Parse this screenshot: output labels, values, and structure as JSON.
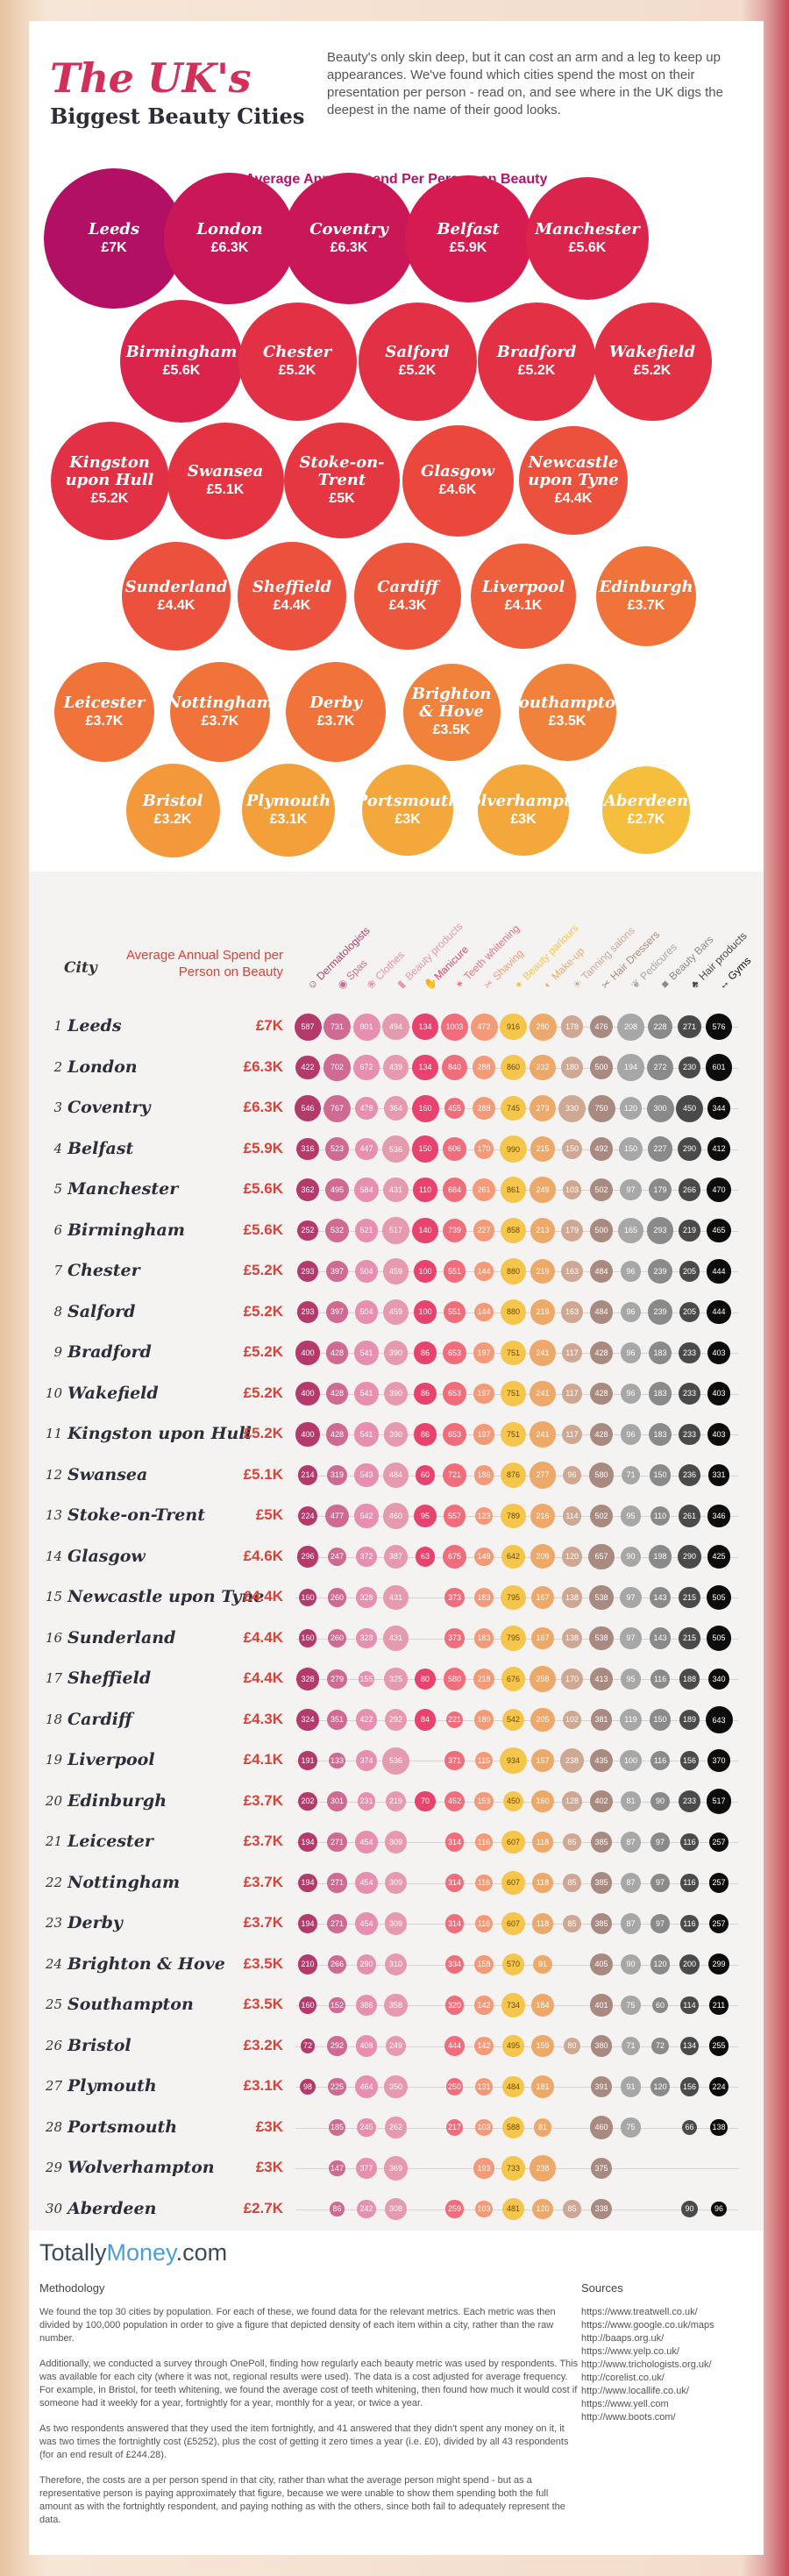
{
  "header": {
    "title": "The UK's",
    "subtitle": "Biggest Beauty Cities",
    "intro": "Beauty's only skin deep, but it can cost an arm and a leg to keep up appearances. We've found which cities spend the most on their presentation per person - read on, and see where in the UK digs the deepest in the name of their good looks."
  },
  "chart_data": [
    {
      "type": "bubble",
      "title": "Average Annual Spend Per Person on Beauty",
      "categories": [
        "Leeds",
        "London",
        "Coventry",
        "Belfast",
        "Manchester",
        "Birmingham",
        "Chester",
        "Salford",
        "Bradford",
        "Wakefield",
        "Kingston upon Hull",
        "Swansea",
        "Stoke-on-Trent",
        "Glasgow",
        "Newcastle upon Tyne",
        "Sunderland",
        "Sheffield",
        "Cardiff",
        "Liverpool",
        "Edinburgh",
        "Leicester",
        "Nottingham",
        "Derby",
        "Brighton & Hove",
        "Southampton",
        "Bristol",
        "Plymouth",
        "Portsmouth",
        "Wolverhampton",
        "Aberdeen"
      ],
      "labels": [
        "Leeds",
        "London",
        "Coventry",
        "Belfast",
        "Manchester",
        "Birmingham",
        "Chester",
        "Salford",
        "Bradford",
        "Wakefield",
        "Kingston upon Hull",
        "Swansea",
        "Stoke-on-Trent",
        "Glasgow",
        "Newcastle upon Tyne",
        "Sunderland",
        "Sheffield",
        "Cardiff",
        "Liverpool",
        "Edinburgh",
        "Leicester",
        "Nottingham",
        "Derby",
        "Brighton & Hove",
        "Southampton",
        "Bristol",
        "Plymouth",
        "Portsmouth",
        "Wolverhampton",
        "Aberdeen"
      ],
      "value_labels": [
        "£7K",
        "£6.3K",
        "£6.3K",
        "£5.9K",
        "£5.6K",
        "£5.6K",
        "£5.2K",
        "£5.2K",
        "£5.2K",
        "£5.2K",
        "£5.2K",
        "£5.1K",
        "£5K",
        "£4.6K",
        "£4.4K",
        "£4.4K",
        "£4.4K",
        "£4.3K",
        "£4.1K",
        "£3.7K",
        "£3.7K",
        "£3.7K",
        "£3.7K",
        "£3.5K",
        "£3.5K",
        "£3.2K",
        "£3.1K",
        "£3K",
        "£3K",
        "£2.7K"
      ],
      "values": [
        7.0,
        6.3,
        6.3,
        5.9,
        5.6,
        5.6,
        5.2,
        5.2,
        5.2,
        5.2,
        5.2,
        5.1,
        5.0,
        4.6,
        4.4,
        4.4,
        4.4,
        4.3,
        4.1,
        3.7,
        3.7,
        3.7,
        3.7,
        3.5,
        3.5,
        3.2,
        3.1,
        3.0,
        3.0,
        2.7
      ]
    },
    {
      "type": "table",
      "title": "",
      "city_header": "City",
      "spend_header": "Average Annual Spend per Person on Beauty",
      "ranks": [
        1,
        2,
        3,
        4,
        5,
        6,
        7,
        8,
        9,
        10,
        11,
        12,
        13,
        14,
        15,
        16,
        17,
        18,
        19,
        20,
        21,
        22,
        23,
        24,
        25,
        26,
        27,
        28,
        29,
        30
      ],
      "columns": [
        "Dermatologists",
        "Spas",
        "Clothes",
        "Beauty products",
        "Manicure",
        "Teeth whitening",
        "Shaving",
        "Beauty parlours",
        "Make-up",
        "Tanning salons",
        "Hair Dressers",
        "Pedicures",
        "Beauty Bars",
        "Hair products",
        "Gyms"
      ],
      "column_colors": [
        "#b53a6c",
        "#cf6b92",
        "#e78fae",
        "#e59aae",
        "#e8426e",
        "#f06d7c",
        "#f49a78",
        "#f6c64c",
        "#eda96a",
        "#cfa894",
        "#a88a80",
        "#a7a7a7",
        "#8a8a8a",
        "#4a4a4a",
        "#0c0c0c"
      ],
      "cities": [
        "Leeds",
        "London",
        "Coventry",
        "Belfast",
        "Manchester",
        "Birmingham",
        "Chester",
        "Salford",
        "Bradford",
        "Wakefield",
        "Kingston upon Hull",
        "Swansea",
        "Stoke-on-Trent",
        "Glasgow",
        "Newcastle upon Tyne",
        "Sunderland",
        "Sheffield",
        "Cardiff",
        "Liverpool",
        "Edinburgh",
        "Leicester",
        "Nottingham",
        "Derby",
        "Brighton & Hove",
        "Southampton",
        "Bristol",
        "Plymouth",
        "Portsmouth",
        "Wolverhampton",
        "Aberdeen"
      ],
      "spend": [
        "£7K",
        "£6.3K",
        "£6.3K",
        "£5.9K",
        "£5.6K",
        "£5.6K",
        "£5.2K",
        "£5.2K",
        "£5.2K",
        "£5.2K",
        "£5.2K",
        "£5.1K",
        "£5K",
        "£4.6K",
        "£4.4K",
        "£4.4K",
        "£4.4K",
        "£4.3K",
        "£4.1K",
        "£3.7K",
        "£3.7K",
        "£3.7K",
        "£3.7K",
        "£3.5K",
        "£3.5K",
        "£3.2K",
        "£3.1K",
        "£3K",
        "£3K",
        "£2.7K"
      ],
      "values": [
        [
          587,
          731,
          801,
          494,
          134,
          1003,
          472,
          916,
          280,
          178,
          476,
          208,
          228,
          271,
          576
        ],
        [
          422,
          702,
          672,
          439,
          134,
          840,
          288,
          860,
          232,
          180,
          500,
          194,
          272,
          230,
          601
        ],
        [
          546,
          767,
          478,
          364,
          160,
          455,
          288,
          745,
          273,
          330,
          750,
          120,
          300,
          450,
          344
        ],
        [
          316,
          523,
          447,
          536,
          150,
          606,
          170,
          990,
          215,
          150,
          492,
          150,
          227,
          290,
          412
        ],
        [
          362,
          495,
          584,
          431,
          110,
          684,
          261,
          861,
          249,
          103,
          502,
          97,
          179,
          266,
          470
        ],
        [
          252,
          532,
          521,
          517,
          140,
          739,
          227,
          858,
          213,
          179,
          500,
          165,
          293,
          219,
          465
        ],
        [
          293,
          397,
          504,
          459,
          100,
          551,
          144,
          880,
          219,
          163,
          484,
          96,
          239,
          205,
          444
        ],
        [
          293,
          397,
          504,
          459,
          100,
          551,
          144,
          880,
          219,
          163,
          484,
          96,
          239,
          205,
          444
        ],
        [
          400,
          428,
          541,
          390,
          86,
          653,
          197,
          751,
          241,
          117,
          428,
          96,
          183,
          233,
          403
        ],
        [
          400,
          428,
          541,
          390,
          86,
          653,
          197,
          751,
          241,
          117,
          428,
          96,
          183,
          233,
          403
        ],
        [
          400,
          428,
          541,
          390,
          86,
          653,
          197,
          751,
          241,
          117,
          428,
          96,
          183,
          233,
          403
        ],
        [
          214,
          319,
          543,
          484,
          60,
          721,
          186,
          876,
          277,
          96,
          580,
          71,
          150,
          236,
          331
        ],
        [
          224,
          477,
          542,
          460,
          95,
          557,
          123,
          789,
          216,
          114,
          502,
          95,
          110,
          261,
          346
        ],
        [
          296,
          247,
          372,
          387,
          63,
          675,
          149,
          642,
          209,
          120,
          657,
          90,
          198,
          290,
          425
        ],
        [
          160,
          260,
          328,
          431,
          0,
          373,
          183,
          795,
          167,
          138,
          538,
          97,
          143,
          215,
          505
        ],
        [
          160,
          260,
          328,
          431,
          0,
          373,
          183,
          795,
          167,
          138,
          538,
          97,
          143,
          215,
          505
        ],
        [
          328,
          279,
          155,
          325,
          80,
          580,
          218,
          676,
          258,
          170,
          413,
          95,
          116,
          188,
          340
        ],
        [
          324,
          351,
          422,
          292,
          84,
          221,
          180,
          542,
          205,
          102,
          381,
          119,
          150,
          189,
          643
        ],
        [
          191,
          133,
          374,
          536,
          0,
          371,
          115,
          934,
          157,
          238,
          435,
          100,
          116,
          156,
          370
        ],
        [
          202,
          301,
          231,
          219,
          70,
          452,
          153,
          450,
          160,
          128,
          402,
          81,
          90,
          233,
          517
        ],
        [
          194,
          271,
          454,
          309,
          0,
          314,
          116,
          607,
          118,
          85,
          385,
          87,
          97,
          116,
          257
        ],
        [
          194,
          271,
          454,
          309,
          0,
          314,
          116,
          607,
          118,
          85,
          385,
          87,
          97,
          116,
          257
        ],
        [
          194,
          271,
          454,
          309,
          0,
          314,
          116,
          607,
          118,
          85,
          385,
          87,
          97,
          116,
          257
        ],
        [
          210,
          266,
          290,
          310,
          0,
          334,
          158,
          570,
          91,
          0,
          405,
          90,
          120,
          200,
          299
        ],
        [
          160,
          152,
          386,
          358,
          0,
          320,
          142,
          734,
          184,
          0,
          401,
          75,
          60,
          114,
          211
        ],
        [
          72,
          292,
          408,
          249,
          0,
          444,
          142,
          495,
          159,
          80,
          380,
          71,
          72,
          134,
          255
        ],
        [
          98,
          225,
          464,
          350,
          0,
          250,
          131,
          484,
          181,
          0,
          391,
          91,
          120,
          156,
          224
        ],
        [
          0,
          185,
          245,
          262,
          0,
          217,
          103,
          588,
          81,
          0,
          460,
          75,
          0,
          66,
          138
        ],
        [
          0,
          147,
          377,
          369,
          0,
          0,
          193,
          733,
          238,
          0,
          375,
          0,
          0,
          0,
          0
        ],
        [
          0,
          86,
          242,
          308,
          0,
          259,
          103,
          481,
          120,
          85,
          338,
          0,
          0,
          90,
          96
        ]
      ]
    }
  ],
  "brand": {
    "name_a": "Totally",
    "name_b": "Money",
    "name_c": ".com"
  },
  "methodology": {
    "heading": "Methodology",
    "paragraphs": [
      "We found the top 30 cities by population. For each of these, we found data for the relevant metrics. Each metric was then divided by 100,000 population in order to give a figure that depicted density of each item within a city, rather than the raw number.",
      "Additionally, we conducted a survey through OnePoll, finding how regularly each beauty metric was used by respondents. This was available for each city (where it was not, regional results were used). The data is a cost adjusted for average frequency. For example, in Bristol, for teeth whitening, we found the average cost of teeth whitening, then found how much it would cost if someone had it weekly for a year, fortnightly for a year, monthly for a year, or twice a year.",
      "As two respondents answered that they used the item fortnightly, and 41 answered that they didn't spent any money on it, it was two times the fortnightly cost (£5252), plus the cost of getting it zero times a year (i.e. £0), divided by all 43 respondents (for an end result of £244.28).",
      "Therefore, the costs are a per person spend in that city, rather than what the average person might spend - but as a representative person is paying approximately that figure, because we were unable to show them spending both the full amount as with the fortnightly respondent, and paying nothing as with the others, since both fail to adequately represent the data."
    ]
  },
  "sources": {
    "heading": "Sources",
    "items": [
      "https://www.treatwell.co.uk/",
      "https://www.google.co.uk/maps",
      "http://baaps.org.uk/",
      "https://www.yelp.co.uk/",
      "http://www.trichologists.org.uk/",
      "http://corelist.co.uk/",
      "http://www.locallife.co.uk/",
      "https://www.yell.com",
      "http://www.boots.com/"
    ]
  }
}
